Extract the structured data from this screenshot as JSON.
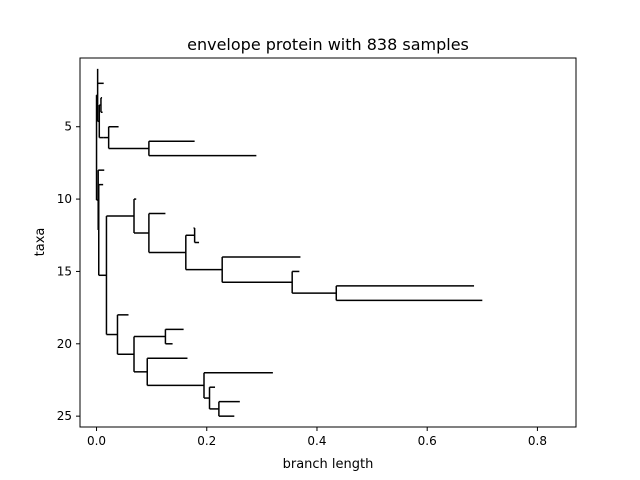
{
  "chart_data": {
    "type": "tree",
    "title": "envelope protein with 838 samples",
    "xlabel": "branch length",
    "ylabel": "taxa",
    "xlim": [
      -0.03,
      0.87
    ],
    "ylim": [
      25.75,
      0.25
    ],
    "xticks": [
      0.0,
      0.2,
      0.4,
      0.6,
      0.8
    ],
    "xtick_labels": [
      "0.0",
      "0.2",
      "0.4",
      "0.6",
      "0.8"
    ],
    "yticks": [
      5,
      10,
      15,
      20,
      25
    ],
    "ytick_labels": [
      "5",
      "10",
      "15",
      "20",
      "25"
    ],
    "grid": false,
    "line_color": "#000000",
    "tree": {
      "x": 0,
      "children": [
        {
          "x": 0.002,
          "children": [
            {
              "leaf": 1,
              "x": 0.002
            },
            {
              "leaf": 2,
              "x": 0.013
            },
            {
              "x": 0.005,
              "children": [
                {
                  "x": 0.008,
                  "children": [
                    {
                      "leaf": 3,
                      "x": 0.01
                    },
                    {
                      "leaf": 4,
                      "x": 0.011
                    }
                  ]
                },
                {
                  "x": 0.012,
                  "children": [
                    {
                      "x": 0.022,
                      "children": [
                        {
                          "leaf": 5,
                          "x": 0.04
                        },
                        {
                          "x": 0.095,
                          "children": [
                            {
                              "leaf": 6,
                              "x": 0.178
                            },
                            {
                              "leaf": 7,
                              "x": 0.29
                            }
                          ]
                        }
                      ]
                    }
                  ]
                }
              ]
            }
          ]
        },
        {
          "x": 0.003,
          "children": [
            {
              "leaf": 8,
              "x": 0.014
            },
            {
              "x": 0.004,
              "children": [
                {
                  "leaf": 9,
                  "x": 0.012
                },
                {
                  "x": 0.018,
                  "children": [
                    {
                      "x": 0.068,
                      "children": [
                        {
                          "leaf": 10,
                          "x": 0.072
                        },
                        {
                          "x": 0.095,
                          "children": [
                            {
                              "leaf": 11,
                              "x": 0.125
                            },
                            {
                              "x": 0.162,
                              "children": [
                                {
                                  "x": 0.178,
                                  "children": [
                                    {
                                      "leaf": 12,
                                      "x": 0.176
                                    },
                                    {
                                      "leaf": 13,
                                      "x": 0.186
                                    }
                                  ]
                                },
                                {
                                  "x": 0.228,
                                  "children": [
                                    {
                                      "leaf": 14,
                                      "x": 0.37
                                    },
                                    {
                                      "x": 0.355,
                                      "children": [
                                        {
                                          "leaf": 15,
                                          "x": 0.368
                                        },
                                        {
                                          "x": 0.435,
                                          "children": [
                                            {
                                              "leaf": 16,
                                              "x": 0.685
                                            },
                                            {
                                              "leaf": 17,
                                              "x": 0.7
                                            }
                                          ]
                                        }
                                      ]
                                    }
                                  ]
                                }
                              ]
                            }
                          ]
                        }
                      ]
                    },
                    {
                      "x": 0.038,
                      "children": [
                        {
                          "leaf": 18,
                          "x": 0.058
                        },
                        {
                          "x": 0.068,
                          "children": [
                            {
                              "x": 0.125,
                              "children": [
                                {
                                  "leaf": 19,
                                  "x": 0.158
                                },
                                {
                                  "leaf": 20,
                                  "x": 0.138
                                }
                              ]
                            },
                            {
                              "x": 0.092,
                              "children": [
                                {
                                  "leaf": 21,
                                  "x": 0.165
                                },
                                {
                                  "x": 0.195,
                                  "children": [
                                    {
                                      "leaf": 22,
                                      "x": 0.32
                                    },
                                    {
                                      "x": 0.205,
                                      "children": [
                                        {
                                          "leaf": 23,
                                          "x": 0.215
                                        },
                                        {
                                          "x": 0.222,
                                          "children": [
                                            {
                                              "leaf": 24,
                                              "x": 0.26
                                            },
                                            {
                                              "leaf": 25,
                                              "x": 0.25
                                            }
                                          ]
                                        }
                                      ]
                                    }
                                  ]
                                }
                              ]
                            }
                          ]
                        }
                      ]
                    }
                  ]
                }
              ]
            }
          ]
        }
      ]
    }
  }
}
